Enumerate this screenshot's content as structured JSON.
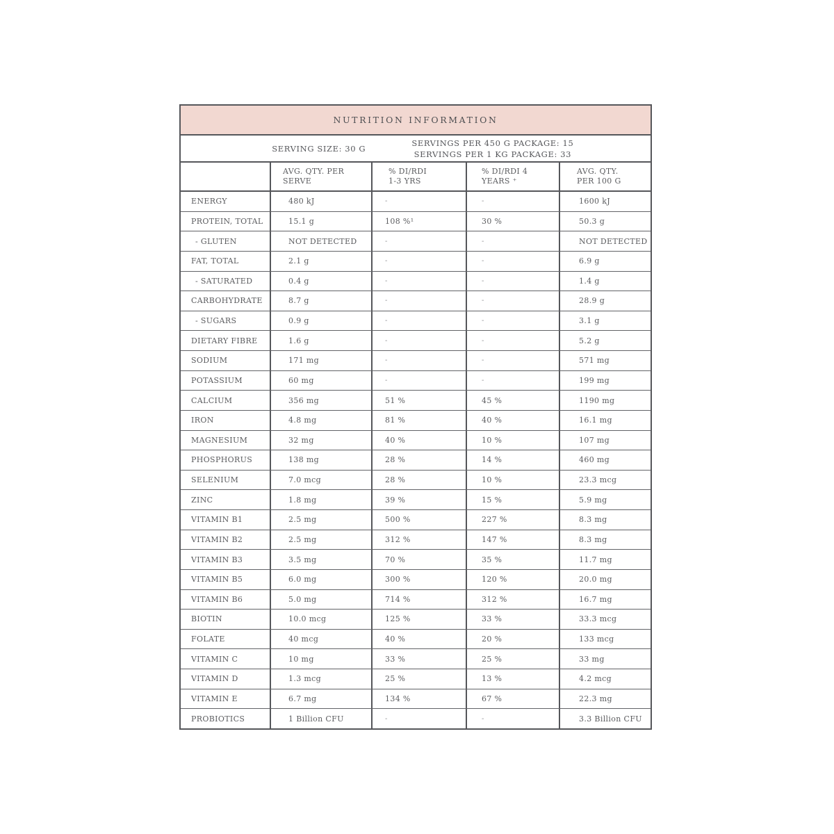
{
  "title": "NUTRITION INFORMATION",
  "serving_info": {
    "serving_size": "SERVING SIZE: 30 G",
    "servings_450g": "SERVINGS PER 450 G PACKAGE: 15",
    "servings_1kg": "SERVINGS PER 1 KG PACKAGE: 33"
  },
  "columns": [
    {
      "line1": "",
      "line2": ""
    },
    {
      "line1": "AVG. QTY. PER",
      "line2": "SERVE"
    },
    {
      "line1": "% DI/RDI",
      "line2": "1-3 YRS"
    },
    {
      "line1": "% DI/RDI 4",
      "line2": "YEARS ⁺"
    },
    {
      "line1": "AVG. QTY.",
      "line2": "PER 100 G"
    }
  ],
  "rows": [
    {
      "nutrient": "ENERGY",
      "per_serve": "480 kJ",
      "di_rdi_1_3_yrs": "-",
      "di_rdi_4_years": "-",
      "per_100g": "1600 kJ"
    },
    {
      "nutrient": "PROTEIN, TOTAL",
      "per_serve": "15.1 g",
      "di_rdi_1_3_yrs": "108 %¹",
      "di_rdi_4_years": "30 %",
      "per_100g": "50.3 g"
    },
    {
      "nutrient": "- GLUTEN",
      "per_serve": "NOT DETECTED",
      "di_rdi_1_3_yrs": "-",
      "di_rdi_4_years": "-",
      "per_100g": "NOT DETECTED"
    },
    {
      "nutrient": "FAT, TOTAL",
      "per_serve": "2.1 g",
      "di_rdi_1_3_yrs": "-",
      "di_rdi_4_years": "-",
      "per_100g": "6.9 g"
    },
    {
      "nutrient": "- SATURATED",
      "per_serve": "0.4 g",
      "di_rdi_1_3_yrs": "-",
      "di_rdi_4_years": "-",
      "per_100g": "1.4 g"
    },
    {
      "nutrient": "CARBOHYDRATE",
      "per_serve": "8.7 g",
      "di_rdi_1_3_yrs": "-",
      "di_rdi_4_years": "-",
      "per_100g": "28.9 g"
    },
    {
      "nutrient": "- SUGARS",
      "per_serve": "0.9 g",
      "di_rdi_1_3_yrs": "-",
      "di_rdi_4_years": "-",
      "per_100g": "3.1 g"
    },
    {
      "nutrient": "DIETARY FIBRE",
      "per_serve": "1.6 g",
      "di_rdi_1_3_yrs": "-",
      "di_rdi_4_years": "-",
      "per_100g": "5.2 g"
    },
    {
      "nutrient": "SODIUM",
      "per_serve": "171 mg",
      "di_rdi_1_3_yrs": "-",
      "di_rdi_4_years": "-",
      "per_100g": "571 mg"
    },
    {
      "nutrient": "POTASSIUM",
      "per_serve": "60 mg",
      "di_rdi_1_3_yrs": "-",
      "di_rdi_4_years": "-",
      "per_100g": "199 mg"
    },
    {
      "nutrient": "CALCIUM",
      "per_serve": "356 mg",
      "di_rdi_1_3_yrs": "51 %",
      "di_rdi_4_years": "45 %",
      "per_100g": "1190 mg"
    },
    {
      "nutrient": "IRON",
      "per_serve": "4.8 mg",
      "di_rdi_1_3_yrs": "81 %",
      "di_rdi_4_years": "40 %",
      "per_100g": "16.1 mg"
    },
    {
      "nutrient": "MAGNESIUM",
      "per_serve": "32 mg",
      "di_rdi_1_3_yrs": "40 %",
      "di_rdi_4_years": "10 %",
      "per_100g": "107 mg"
    },
    {
      "nutrient": "PHOSPHORUS",
      "per_serve": "138 mg",
      "di_rdi_1_3_yrs": "28 %",
      "di_rdi_4_years": "14 %",
      "per_100g": "460 mg"
    },
    {
      "nutrient": "SELENIUM",
      "per_serve": "7.0 mcg",
      "di_rdi_1_3_yrs": "28 %",
      "di_rdi_4_years": "10 %",
      "per_100g": "23.3 mcg"
    },
    {
      "nutrient": "ZINC",
      "per_serve": "1.8 mg",
      "di_rdi_1_3_yrs": "39 %",
      "di_rdi_4_years": "15 %",
      "per_100g": "5.9 mg"
    },
    {
      "nutrient": "VITAMIN B1",
      "per_serve": "2.5 mg",
      "di_rdi_1_3_yrs": "500 %",
      "di_rdi_4_years": "227 %",
      "per_100g": "8.3 mg"
    },
    {
      "nutrient": "VITAMIN B2",
      "per_serve": "2.5 mg",
      "di_rdi_1_3_yrs": "312 %",
      "di_rdi_4_years": "147 %",
      "per_100g": "8.3 mg"
    },
    {
      "nutrient": "VITAMIN B3",
      "per_serve": "3.5 mg",
      "di_rdi_1_3_yrs": "70 %",
      "di_rdi_4_years": "35 %",
      "per_100g": "11.7 mg"
    },
    {
      "nutrient": "VITAMIN B5",
      "per_serve": "6.0 mg",
      "di_rdi_1_3_yrs": "300 %",
      "di_rdi_4_years": "120 %",
      "per_100g": "20.0 mg"
    },
    {
      "nutrient": "VITAMIN B6",
      "per_serve": "5.0 mg",
      "di_rdi_1_3_yrs": "714 %",
      "di_rdi_4_years": "312 %",
      "per_100g": "16.7 mg"
    },
    {
      "nutrient": "BIOTIN",
      "per_serve": "10.0 mcg",
      "di_rdi_1_3_yrs": "125 %",
      "di_rdi_4_years": "33 %",
      "per_100g": "33.3 mcg"
    },
    {
      "nutrient": "FOLATE",
      "per_serve": "40 mcg",
      "di_rdi_1_3_yrs": "40 %",
      "di_rdi_4_years": "20 %",
      "per_100g": "133 mcg"
    },
    {
      "nutrient": "VITAMIN C",
      "per_serve": "10 mg",
      "di_rdi_1_3_yrs": "33 %",
      "di_rdi_4_years": "25 %",
      "per_100g": "33 mg"
    },
    {
      "nutrient": "VITAMIN D",
      "per_serve": "1.3 mcg",
      "di_rdi_1_3_yrs": "25 %",
      "di_rdi_4_years": "13 %",
      "per_100g": "4.2 mcg"
    },
    {
      "nutrient": "VITAMIN E",
      "per_serve": "6.7 mg",
      "di_rdi_1_3_yrs": "134 %",
      "di_rdi_4_years": "67 %",
      "per_100g": "22.3 mg"
    },
    {
      "nutrient": "PROBIOTICS",
      "per_serve": "1 Billion CFU",
      "di_rdi_1_3_yrs": "-",
      "di_rdi_4_years": "-",
      "per_100g": "3.3 Billion CFU"
    }
  ],
  "colors": {
    "header_bg": "#f2d8d1",
    "border_dark": "#55565a",
    "row_line": "#616266",
    "text": "#5b5c5f"
  }
}
